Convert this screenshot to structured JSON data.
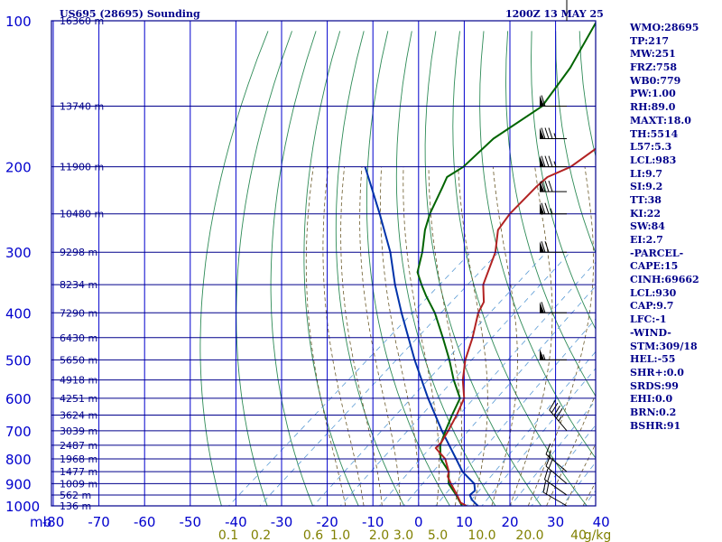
{
  "header": {
    "station": "US695 (28695) Sounding",
    "valid": "1200Z 13 MAY 25"
  },
  "indices": [
    "WMO:28695",
    "TP:217",
    "MW:251",
    "FRZ:758",
    "WB0:779",
    "PW:1.00",
    "RH:89.0",
    "MAXT:18.0",
    "TH:5514",
    "L57:5.3",
    "LCL:983",
    "LI:9.7",
    "SI:9.2",
    "TT:38",
    "KI:22",
    "SW:84",
    "EI:2.7",
    "-PARCEL-",
    "CAPE:15",
    "CINH:69662",
    "LCL:930",
    "CAP:9.7",
    "LFC:-1",
    "-WIND-",
    "STM:309/18",
    "HEL:-55",
    "SHR+:0.0",
    "SRDS:99",
    "EHI:0.0",
    "BRN:0.2",
    "BSHR:91"
  ],
  "colors": {
    "frame": "#00008b",
    "isotherm": "#0000cd",
    "dry_adiabat": "#2e8b57",
    "moist_adiabat": "#6b5a2a",
    "mixing_ratio": "#5b9bd5",
    "temperature": "#b22222",
    "dewpoint": "#006400",
    "parcel": "#0033aa",
    "mixing_ratio_label": "#808000",
    "axis_label": "#0000cd"
  },
  "chart_data": {
    "type": "skew-t log-p",
    "title": "US695 (28695) Sounding",
    "ylabel": "mb",
    "xlabel": "",
    "ylim": [
      1000,
      100
    ],
    "xlim": [
      -80,
      0
    ],
    "grid": true,
    "pressure_ticks": [
      100,
      200,
      300,
      400,
      500,
      600,
      700,
      800,
      900,
      1000
    ],
    "temperature_ticks": [
      -80,
      -70,
      -60,
      -50,
      -40,
      -30,
      -20,
      -10,
      0,
      10,
      20,
      30,
      40
    ],
    "axis_corner_label": "mb",
    "height_labels": [
      {
        "p": 100,
        "label": "16360 m"
      },
      {
        "p": 150,
        "label": "13740 m"
      },
      {
        "p": 200,
        "label": "11900 m"
      },
      {
        "p": 250,
        "label": "10480 m"
      },
      {
        "p": 300,
        "label": "9298 m"
      },
      {
        "p": 350,
        "label": "8234 m"
      },
      {
        "p": 400,
        "label": "7290 m"
      },
      {
        "p": 450,
        "label": "6430 m"
      },
      {
        "p": 500,
        "label": "5650 m"
      },
      {
        "p": 550,
        "label": "4918 m"
      },
      {
        "p": 600,
        "label": "4251 m"
      },
      {
        "p": 650,
        "label": "3624 m"
      },
      {
        "p": 700,
        "label": "3039 m"
      },
      {
        "p": 750,
        "label": "2487 m"
      },
      {
        "p": 800,
        "label": "1968 m"
      },
      {
        "p": 850,
        "label": "1477 m"
      },
      {
        "p": 900,
        "label": "1009 m"
      },
      {
        "p": 950,
        "label": "562 m"
      },
      {
        "p": 1000,
        "label": "136 m"
      }
    ],
    "mixing_ratio_labels": [
      "0.1",
      "0.2",
      "0.6",
      "1.0",
      "2.0",
      "3.0",
      "5.0",
      "10.0",
      "20.0",
      "40",
      "g/kg"
    ],
    "series": [
      {
        "name": "temperature",
        "points": [
          [
            1000,
            10.5
          ],
          [
            985,
            8.4
          ],
          [
            950,
            5.7
          ],
          [
            900,
            1.5
          ],
          [
            870,
            -1.0
          ],
          [
            850,
            -2.0
          ],
          [
            800,
            -6.0
          ],
          [
            760,
            -10.8
          ],
          [
            740,
            -11.0
          ],
          [
            700,
            -12.4
          ],
          [
            650,
            -14.5
          ],
          [
            600,
            -17.1
          ],
          [
            550,
            -22.0
          ],
          [
            500,
            -26.5
          ],
          [
            450,
            -30.5
          ],
          [
            400,
            -35.5
          ],
          [
            380,
            -37.0
          ],
          [
            350,
            -41.5
          ],
          [
            300,
            -47.0
          ],
          [
            270,
            -52.0
          ],
          [
            250,
            -53.5
          ],
          [
            220,
            -54.5
          ],
          [
            210,
            -54.5
          ],
          [
            200,
            -52.0
          ],
          [
            175,
            -50.5
          ],
          [
            150,
            -51.0
          ],
          [
            125,
            -55.0
          ],
          [
            100,
            -58.5
          ]
        ]
      },
      {
        "name": "dewpoint",
        "points": [
          [
            1000,
            9.5
          ],
          [
            950,
            5.5
          ],
          [
            900,
            1.0
          ],
          [
            850,
            -2.0
          ],
          [
            800,
            -7.0
          ],
          [
            750,
            -10.5
          ],
          [
            700,
            -13.0
          ],
          [
            650,
            -15.5
          ],
          [
            600,
            -18.0
          ],
          [
            550,
            -24.0
          ],
          [
            500,
            -30.0
          ],
          [
            450,
            -37.0
          ],
          [
            400,
            -45.0
          ],
          [
            370,
            -51.0
          ],
          [
            350,
            -55.0
          ],
          [
            330,
            -59.0
          ],
          [
            300,
            -63.0
          ],
          [
            270,
            -68.0
          ],
          [
            250,
            -71.0
          ],
          [
            220,
            -75.0
          ],
          [
            210,
            -76.5
          ],
          [
            200,
            -75.5
          ],
          [
            175,
            -76.0
          ],
          [
            150,
            -73.5
          ],
          [
            125,
            -77.0
          ],
          [
            100,
            -83.0
          ]
        ]
      },
      {
        "name": "parcel",
        "points": [
          [
            1000,
            13.0
          ],
          [
            990,
            12.0
          ],
          [
            970,
            10.0
          ],
          [
            950,
            8.5
          ],
          [
            930,
            8.5
          ],
          [
            900,
            6.6
          ],
          [
            850,
            1.0
          ],
          [
            800,
            -3.6
          ],
          [
            700,
            -13.8
          ],
          [
            600,
            -25.0
          ],
          [
            500,
            -37.6
          ],
          [
            400,
            -52.3
          ],
          [
            350,
            -60.8
          ],
          [
            300,
            -70.0
          ],
          [
            250,
            -82.0
          ],
          [
            200,
            -97.0
          ]
        ]
      }
    ],
    "wind_barbs": [
      {
        "p": 1000,
        "dir": 300,
        "speed_kt": 20
      },
      {
        "p": 950,
        "dir": 305,
        "speed_kt": 20
      },
      {
        "p": 900,
        "dir": 310,
        "speed_kt": 20
      },
      {
        "p": 850,
        "dir": 310,
        "speed_kt": 15
      },
      {
        "p": 700,
        "dir": 320,
        "speed_kt": 45
      },
      {
        "p": 500,
        "dir": 270,
        "speed_kt": 55
      },
      {
        "p": 400,
        "dir": 270,
        "speed_kt": 60
      },
      {
        "p": 300,
        "dir": 270,
        "speed_kt": 70
      },
      {
        "p": 250,
        "dir": 270,
        "speed_kt": 75
      },
      {
        "p": 225,
        "dir": 270,
        "speed_kt": 80
      },
      {
        "p": 200,
        "dir": 270,
        "speed_kt": 85
      },
      {
        "p": 175,
        "dir": 270,
        "speed_kt": 85
      },
      {
        "p": 150,
        "dir": 270,
        "speed_kt": 60
      },
      {
        "p": 100,
        "dir": 0,
        "speed_kt": 50
      }
    ]
  }
}
